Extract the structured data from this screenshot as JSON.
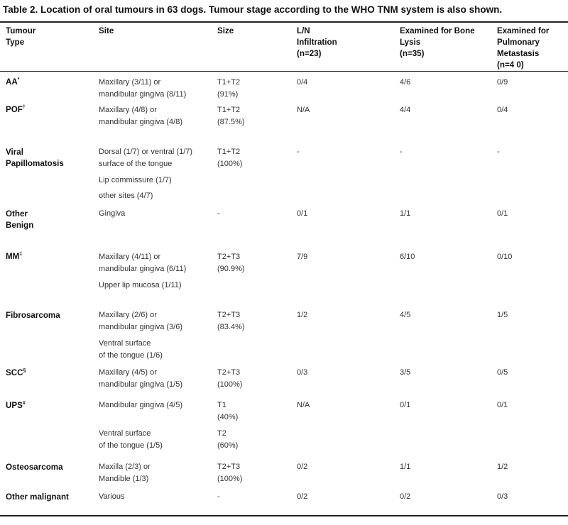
{
  "caption": "Table 2.  Location of oral tumours in 63 dogs. Tumour stage according to the WHO TNM system is also shown.",
  "headers": {
    "type": "Tumour\nType",
    "site": "Site",
    "size": "Size",
    "ln": "L/N\nInfiltration\n(n=23)",
    "bone": "Examined for Bone\nLysis\n(n=35)",
    "pulm": "Examined for\nPulmonary\nMetastasis\n(n=4 0)"
  },
  "rows": [
    {
      "type": "AA",
      "sup": "*",
      "site": "Maxillary (3/11) or\nmandibular gingiva (8/11)",
      "size": "T1+T2\n(91%)",
      "ln": "0/4",
      "bone": "4/6",
      "pulm": "0/9"
    },
    {
      "type": "POF",
      "sup": "†",
      "site": "Maxillary (4/8) or\nmandibular gingiva (4/8)",
      "size": "T1+T2\n(87.5%)",
      "ln": "N/A",
      "bone": "4/4",
      "pulm": "0/4"
    },
    {
      "type": "Viral\nPapillomatosis",
      "sup": "",
      "site": "Dorsal (1/7) or ventral (1/7)\nsurface of the tongue",
      "site2": "Lip commissure (1/7)",
      "site3": "other sites (4/7)",
      "size": "T1+T2\n(100%)",
      "ln": "-",
      "bone": "-",
      "pulm": "-"
    },
    {
      "type": "Other\nBenign",
      "sup": "",
      "site": "Gingiva",
      "size": "-",
      "ln": "0/1",
      "bone": "1/1",
      "pulm": "0/1"
    },
    {
      "type": "MM",
      "sup": "‡",
      "site": "Maxillary (4/11) or\nmandibular gingiva (6/11)",
      "site2": "Upper lip mucosa (1/11)",
      "size": "T2+T3\n(90.9%)",
      "ln": "7/9",
      "bone": "6/10",
      "pulm": "0/10"
    },
    {
      "type": "Fibrosarcoma",
      "sup": "",
      "site": "Maxillary (2/6) or\nmandibular gingiva (3/6)",
      "site2": "Ventral surface\nof the tongue (1/6)",
      "size": "T2+T3\n(83.4%)",
      "ln": "1/2",
      "bone": "4/5",
      "pulm": "1/5"
    },
    {
      "type": "SCC",
      "sup": "§",
      "site": "Maxillary (4/5) or\nmandibular gingiva (1/5)",
      "size": "T2+T3\n(100%)",
      "ln": "0/3",
      "bone": "3/5",
      "pulm": "0/5"
    },
    {
      "type": "UPS",
      "sup": "#",
      "site": "Mandibular gingiva (4/5)",
      "site2": "Ventral surface\nof the tongue (1/5)",
      "size": "T1\n(40%)",
      "size2": "T2\n(60%)",
      "ln": "N/A",
      "bone": "0/1",
      "pulm": "0/1"
    },
    {
      "type": "Osteosarcoma",
      "sup": "",
      "site": "Maxilla (2/3) or\nMandible (1/3)",
      "size": "T2+T3\n(100%)",
      "ln": "0/2",
      "bone": "1/1",
      "pulm": "1/2"
    },
    {
      "type": "Other malignant",
      "sup": "",
      "site": "Various",
      "size": "-",
      "ln": "0/2",
      "bone": "0/2",
      "pulm": "0/3"
    }
  ]
}
